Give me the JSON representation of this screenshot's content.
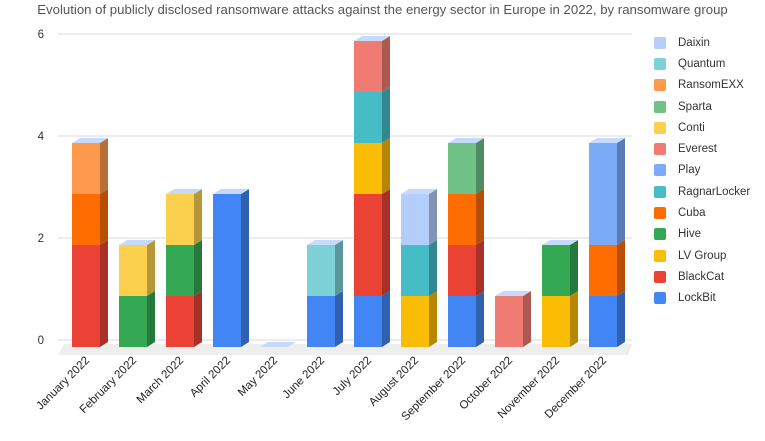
{
  "chart_data": {
    "type": "bar",
    "stacked": true,
    "three_d": true,
    "title": "Evolution of publicly disclosed ransomware attacks against the energy sector in Europe in 2022, by ransomware group",
    "xlabel": "",
    "ylabel": "",
    "ylim": [
      0,
      6
    ],
    "yticks": [
      "0",
      "2",
      "4",
      "6"
    ],
    "grid": true,
    "legend_position": "right",
    "categories": [
      "January 2022",
      "February 2022",
      "March 2022",
      "April 2022",
      "May 2022",
      "June 2022",
      "July 2022",
      "August 2022",
      "September 2022",
      "October 2022",
      "November 2022",
      "December 2022"
    ],
    "series": [
      {
        "name": "LockBit",
        "color": "#4285f4",
        "values": [
          0,
          0,
          0,
          3,
          0,
          1,
          1,
          0,
          1,
          0,
          0,
          1
        ]
      },
      {
        "name": "BlackCat",
        "color": "#ea4335",
        "values": [
          2,
          0,
          1,
          0,
          0,
          0,
          2,
          0,
          1,
          0,
          0,
          0
        ]
      },
      {
        "name": "LV Group",
        "color": "#fbbc04",
        "values": [
          0,
          0,
          0,
          0,
          0,
          0,
          1,
          1,
          0,
          0,
          1,
          0
        ]
      },
      {
        "name": "Hive",
        "color": "#34a853",
        "values": [
          0,
          1,
          1,
          0,
          0,
          0,
          0,
          0,
          0,
          0,
          1,
          0
        ]
      },
      {
        "name": "Cuba",
        "color": "#ff6d01",
        "values": [
          1,
          0,
          0,
          0,
          0,
          0,
          0,
          0,
          1,
          0,
          0,
          1
        ]
      },
      {
        "name": "RagnarLocker",
        "color": "#46bdc6",
        "values": [
          0,
          0,
          0,
          0,
          0,
          0,
          1,
          1,
          0,
          0,
          0,
          0
        ]
      },
      {
        "name": "Play",
        "color": "#7baaf7",
        "values": [
          0,
          0,
          0,
          0,
          0,
          0,
          0,
          0,
          0,
          0,
          0,
          2
        ]
      },
      {
        "name": "Everest",
        "color": "#f07b72",
        "values": [
          0,
          0,
          0,
          0,
          0,
          0,
          1,
          0,
          0,
          1,
          0,
          0
        ]
      },
      {
        "name": "Conti",
        "color": "#fcd04f",
        "values": [
          0,
          1,
          1,
          0,
          0,
          0,
          0,
          0,
          0,
          0,
          0,
          0
        ]
      },
      {
        "name": "Sparta",
        "color": "#71c287",
        "values": [
          0,
          0,
          0,
          0,
          0,
          0,
          0,
          0,
          1,
          0,
          0,
          0
        ]
      },
      {
        "name": "RansomEXX",
        "color": "#ff994d",
        "values": [
          1,
          0,
          0,
          0,
          0,
          0,
          0,
          0,
          0,
          0,
          0,
          0
        ]
      },
      {
        "name": "Quantum",
        "color": "#7ed1d7",
        "values": [
          0,
          0,
          0,
          0,
          0,
          1,
          0,
          0,
          0,
          0,
          0,
          0
        ]
      },
      {
        "name": "Daixin",
        "color": "#b3cefb",
        "values": [
          0,
          0,
          0,
          0,
          0,
          0,
          0,
          1,
          0,
          0,
          0,
          0
        ]
      }
    ]
  }
}
